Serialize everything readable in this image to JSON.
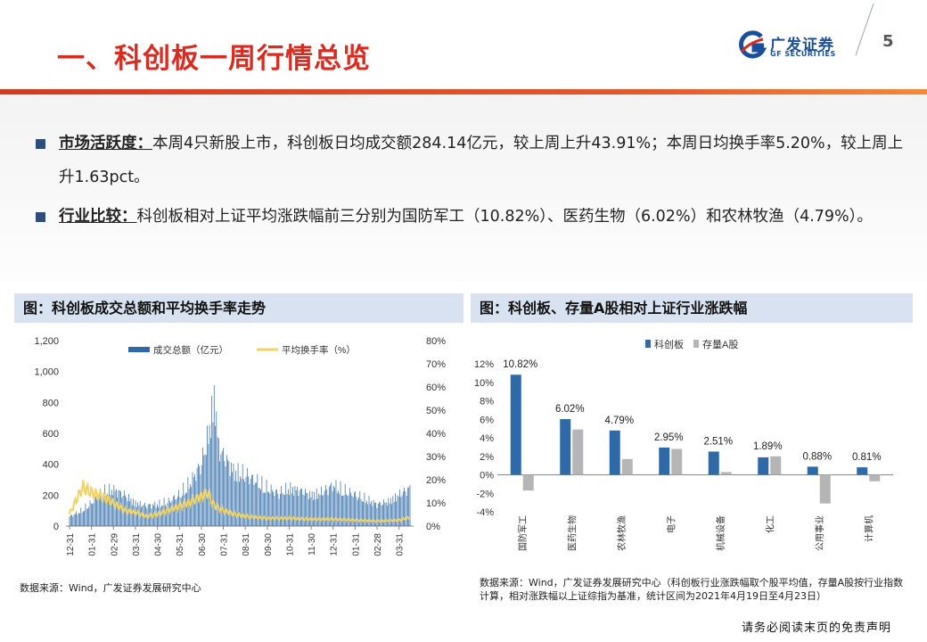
{
  "page": {
    "title": "一、科创板一周行情总览",
    "page_number": "5",
    "footer": "请务必阅读末页的免责声明"
  },
  "logo": {
    "cn": "广发证券",
    "en": "GF SECURITIES"
  },
  "bullets": [
    {
      "key": "市场活跃度：",
      "text": "本周4只新股上市，科创板日均成交额284.14亿元，较上周上升43.91%；本周日均换手率5.20%，较上周上升1.63pct。"
    },
    {
      "key": "行业比较：",
      "text": "科创板相对上证平均涨跌幅前三分别为国防军工（10.82%）、医药生物（6.02%）和农林牧渔（4.79%）。"
    }
  ],
  "left_panel": {
    "header": "图：科创板成交总额和平均换手率走势",
    "source": "数据来源：Wind，广发证券发展研究中心"
  },
  "right_panel": {
    "header": "图：科创板、存量A股相对上证行业涨跌幅",
    "source": "数据来源：Wind，广发证券发展研究中心（科创板行业涨跌幅取个股平均值，存量A股按行业指数计算，相对涨跌幅以上证综指为基准，统计区间为2021年4月19日至4月23日）"
  },
  "colors": {
    "accent_red": "#d92b1f",
    "bar_blue": "#2e6aa8",
    "line_yellow": "#f2d264",
    "bar_grey": "#b5b5b5",
    "header_bg": "#d8e2f0"
  },
  "chart_data": [
    {
      "type": "bar",
      "series": [
        {
          "name": "成交总额（亿元）",
          "axis": "left"
        },
        {
          "name": "平均换手率（%）",
          "axis": "right",
          "type": "line"
        }
      ],
      "x_ticks": [
        "12-31",
        "01-31",
        "02-29",
        "03-31",
        "04-30",
        "05-31",
        "06-30",
        "07-31",
        "08-31",
        "09-30",
        "10-31",
        "11-30",
        "12-31",
        "01-31",
        "02-28",
        "03-31"
      ],
      "y_left": {
        "ticks": [
          "0",
          "200",
          "400",
          "600",
          "800",
          "1,000",
          "1,200"
        ],
        "range": [
          0,
          1200
        ]
      },
      "y_right": {
        "ticks": [
          "0%",
          "10%",
          "20%",
          "30%",
          "40%",
          "50%",
          "60%",
          "70%",
          "80%"
        ],
        "range": [
          0,
          80
        ]
      },
      "amount_profile": [
        [
          0,
          70
        ],
        [
          0.5,
          110
        ],
        [
          1,
          170
        ],
        [
          1.5,
          250
        ],
        [
          2,
          270
        ],
        [
          2.5,
          230
        ],
        [
          3,
          170
        ],
        [
          3.5,
          150
        ],
        [
          4,
          160
        ],
        [
          4.5,
          180
        ],
        [
          5,
          230
        ],
        [
          5.5,
          320
        ],
        [
          6,
          460
        ],
        [
          6.3,
          650
        ],
        [
          6.6,
          970
        ],
        [
          6.8,
          560
        ],
        [
          7,
          520
        ],
        [
          7.5,
          400
        ],
        [
          8,
          380
        ],
        [
          8.5,
          330
        ],
        [
          9,
          280
        ],
        [
          9.5,
          240
        ],
        [
          10,
          280
        ],
        [
          10.5,
          260
        ],
        [
          11,
          230
        ],
        [
          11.5,
          250
        ],
        [
          12,
          300
        ],
        [
          12.5,
          260
        ],
        [
          13,
          230
        ],
        [
          13.5,
          200
        ],
        [
          14,
          160
        ],
        [
          14.5,
          180
        ],
        [
          15,
          230
        ],
        [
          15.5,
          280
        ]
      ],
      "turnover_profile": [
        [
          0,
          6
        ],
        [
          0.6,
          20
        ],
        [
          1,
          17
        ],
        [
          1.5,
          15
        ],
        [
          2,
          12
        ],
        [
          2.5,
          8
        ],
        [
          3,
          7
        ],
        [
          3.5,
          5
        ],
        [
          4,
          6
        ],
        [
          4.5,
          8
        ],
        [
          5,
          10
        ],
        [
          5.5,
          12
        ],
        [
          6,
          15
        ],
        [
          6.3,
          17
        ],
        [
          6.6,
          10
        ],
        [
          7,
          8
        ],
        [
          7.5,
          6
        ],
        [
          8,
          5
        ],
        [
          9,
          4
        ],
        [
          10,
          4
        ],
        [
          11,
          3.5
        ],
        [
          12,
          3.5
        ],
        [
          13,
          3
        ],
        [
          14,
          2.5
        ],
        [
          15,
          3
        ],
        [
          15.5,
          4.5
        ]
      ]
    },
    {
      "type": "bar",
      "legend": [
        "科创板",
        "存量A股"
      ],
      "categories": [
        "国防军工",
        "医药生物",
        "农林牧渔",
        "电子",
        "机械设备",
        "化工",
        "公用事业",
        "计算机"
      ],
      "series": [
        {
          "name": "科创板",
          "values": [
            10.82,
            6.02,
            4.79,
            2.95,
            2.51,
            1.89,
            0.88,
            0.81
          ]
        },
        {
          "name": "存量A股",
          "values": [
            -1.7,
            4.9,
            1.7,
            2.8,
            0.3,
            2.0,
            -3.1,
            -0.7
          ]
        }
      ],
      "data_labels": [
        "10.82%",
        "6.02%",
        "4.79%",
        "2.95%",
        "2.51%",
        "1.89%",
        "0.88%",
        "0.81%"
      ],
      "y_ticks": [
        "12%",
        "10%",
        "8%",
        "6%",
        "4%",
        "2%",
        "0%",
        "-2%",
        "-4%"
      ],
      "ylim": [
        -4,
        12
      ]
    }
  ]
}
